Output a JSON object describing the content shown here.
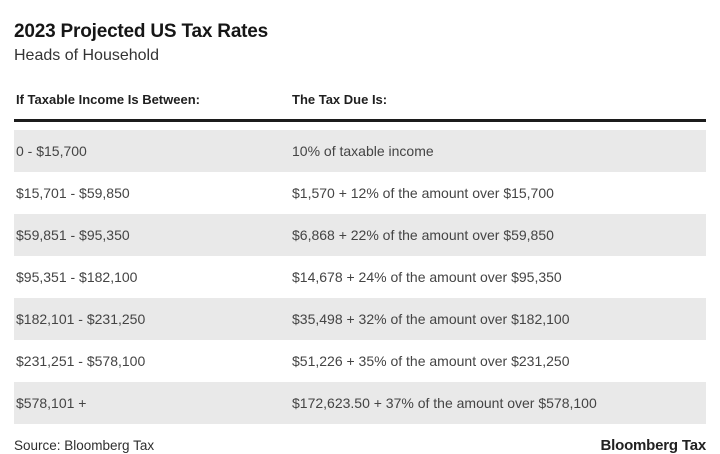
{
  "chart_data": {
    "type": "table",
    "title": "2023 Projected US Tax Rates",
    "subtitle": "Heads of Household",
    "columns": [
      "If Taxable Income Is Between:",
      "The Tax Due Is:"
    ],
    "rows": [
      [
        "0 - $15,700",
        "10% of taxable income"
      ],
      [
        "$15,701 - $59,850",
        "$1,570 + 12% of the amount over $15,700"
      ],
      [
        "$59,851 - $95,350",
        "$6,868 + 22% of the amount over $59,850"
      ],
      [
        "$95,351 - $182,100",
        "$14,678 + 24% of the amount over $95,350"
      ],
      [
        "$182,101 - $231,250",
        "$35,498 + 32% of the amount over $182,100"
      ],
      [
        "$231,251 - $578,100",
        "$51,226 + 35% of the amount over $231,250"
      ],
      [
        "$578,101 +",
        "$172,623.50 + 37% of the amount over $578,100"
      ]
    ],
    "layout": {
      "stripe_rows": "odd",
      "header_rule": true,
      "grid": false,
      "legend": "none"
    }
  },
  "footer": {
    "source": "Source: Bloomberg Tax",
    "logo": "Bloomberg Tax"
  },
  "colors": {
    "background": "#ffffff",
    "stripe": "#e9e9e9",
    "rule": "#1c1c1c",
    "body_text": "#444444",
    "heading_text": "#161616"
  }
}
